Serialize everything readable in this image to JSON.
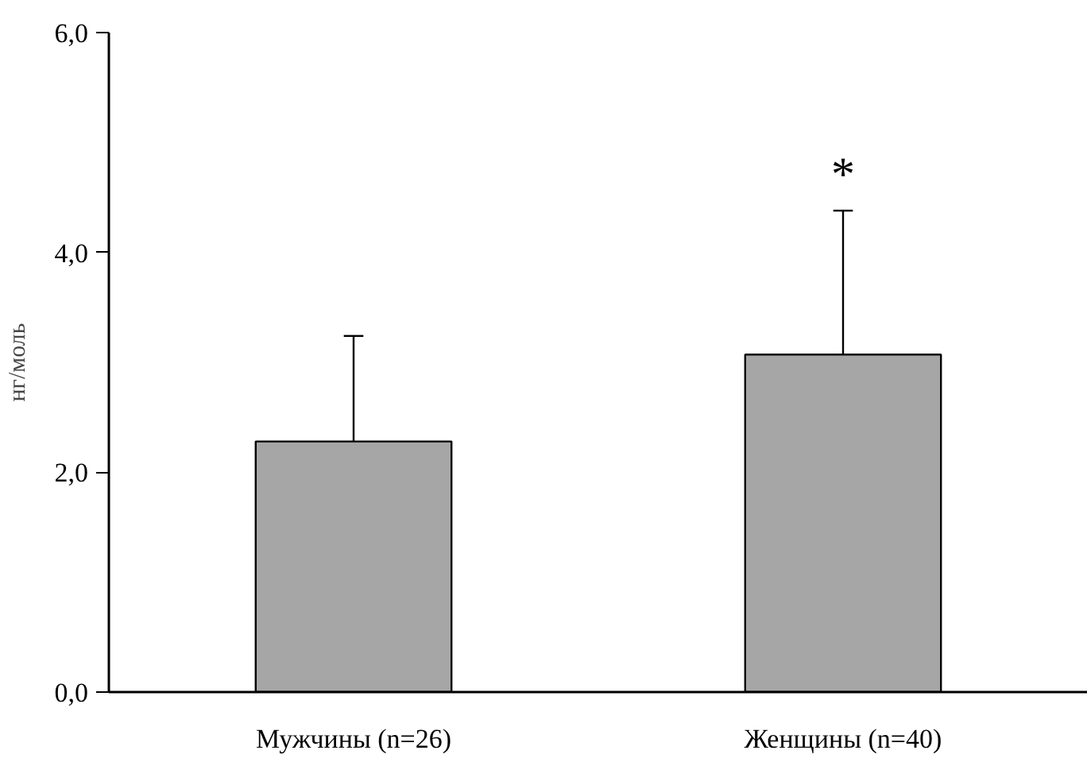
{
  "chart_data": {
    "type": "bar",
    "ylabel": "нг/моль",
    "categories": [
      "Мужчины (n=26)",
      "Женщины (n=40)"
    ],
    "values": [
      2.28,
      3.07
    ],
    "errors": [
      [
        2.28,
        3.24
      ],
      [
        3.07,
        4.38
      ]
    ],
    "color": "#a6a6a6",
    "ylim": [
      0,
      6
    ],
    "yticks": [
      {
        "value": 0,
        "label": "0,0"
      },
      {
        "value": 2,
        "label": "2,0"
      },
      {
        "value": 4,
        "label": "4,0"
      },
      {
        "value": 6,
        "label": "6,0"
      }
    ],
    "grid": false,
    "annotations": [
      "*"
    ]
  }
}
